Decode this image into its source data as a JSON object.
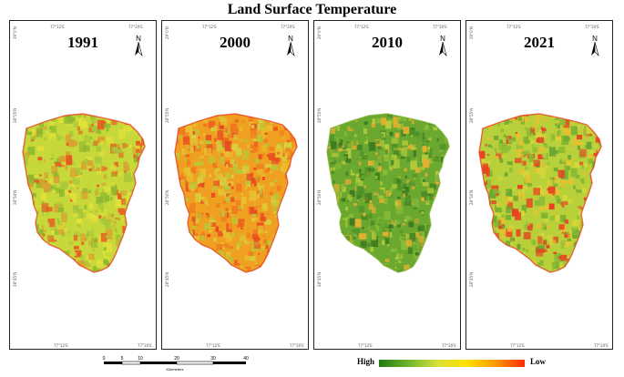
{
  "title": "Land Surface Temperature",
  "panels": [
    {
      "year": "1991",
      "palette": [
        "#c6d83a",
        "#a8c83a",
        "#e2e03a",
        "#8cb830",
        "#d8a030",
        "#e85a20"
      ],
      "edge": "#e84420"
    },
    {
      "year": "2000",
      "palette": [
        "#f0a020",
        "#e8c030",
        "#f07820",
        "#d8d040",
        "#b8c838",
        "#e84a20"
      ],
      "edge": "#e84420"
    },
    {
      "year": "2010",
      "palette": [
        "#6aa830",
        "#4e9028",
        "#8cbc38",
        "#b8cc3a",
        "#3c7a20",
        "#e8b030"
      ],
      "edge": "#7ab030"
    },
    {
      "year": "2021",
      "palette": [
        "#b8d03a",
        "#8cbc34",
        "#d8d83a",
        "#6aa830",
        "#e8c030",
        "#e84020"
      ],
      "edge": "#e84420"
    }
  ],
  "coords": {
    "top_left": "77°12'E",
    "top_right": "77°20'E",
    "bottom_left": "77°12'E",
    "bottom_right": "77°20'E",
    "lat_1": "29°0'N",
    "lat_2": "28°55'N",
    "lat_3": "28°50'N",
    "lat_4": "28°45'N"
  },
  "north_label": "N",
  "scale": {
    "ticks": [
      "0",
      "5",
      "10",
      "20",
      "30",
      "40"
    ],
    "unit": "Kilometers"
  },
  "legend": {
    "high": "High",
    "low": "Low"
  }
}
